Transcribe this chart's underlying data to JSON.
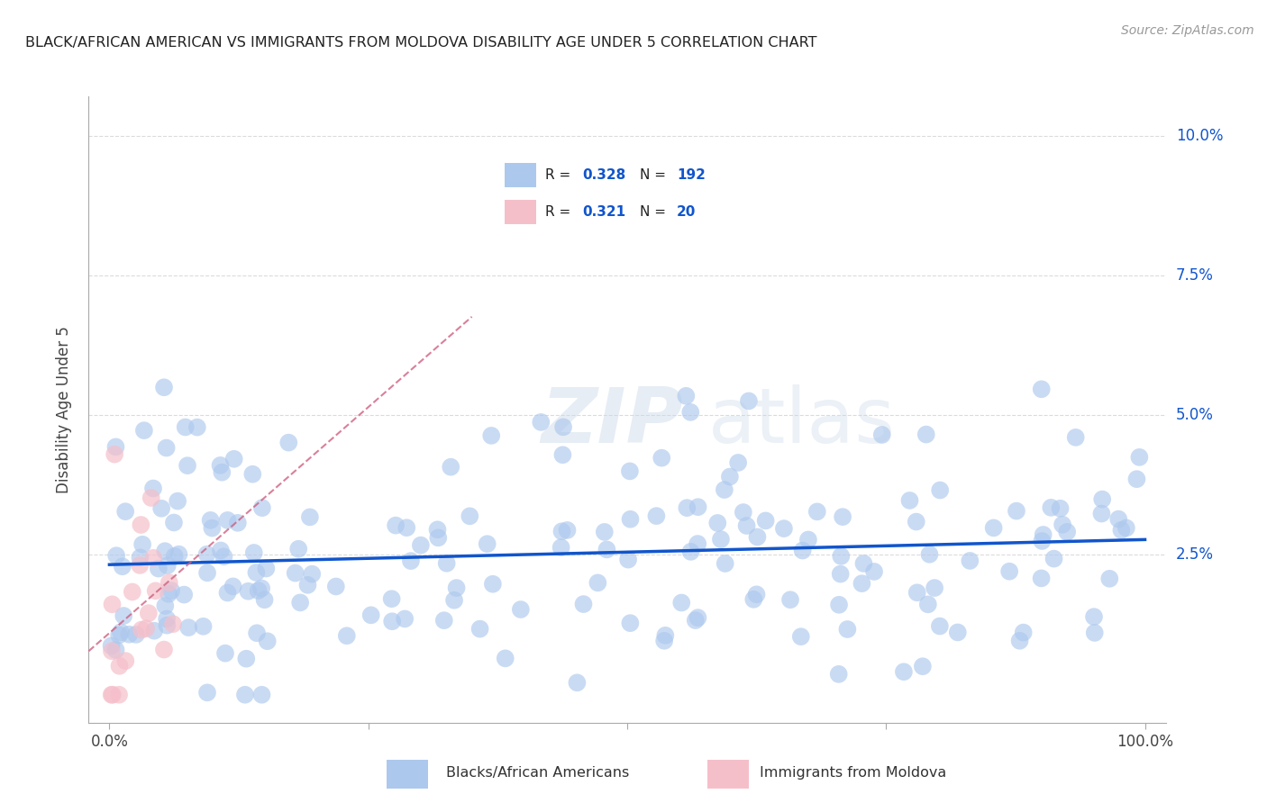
{
  "title": "BLACK/AFRICAN AMERICAN VS IMMIGRANTS FROM MOLDOVA DISABILITY AGE UNDER 5 CORRELATION CHART",
  "source": "Source: ZipAtlas.com",
  "ylabel": "Disability Age Under 5",
  "blue_R": 0.328,
  "blue_N": 192,
  "pink_R": 0.321,
  "pink_N": 20,
  "blue_color": "#adc8ed",
  "blue_line_color": "#1155cc",
  "pink_color": "#f5bfca",
  "pink_line_color": "#d06080",
  "bg_color": "#ffffff",
  "grid_color": "#cccccc",
  "title_color": "#222222",
  "source_color": "#999999",
  "legend_label_blue": "Blacks/African Americans",
  "legend_label_pink": "Immigrants from Moldova",
  "watermark_zip": "ZIP",
  "watermark_atlas": "atlas",
  "xlim": [
    -0.02,
    1.02
  ],
  "ylim": [
    -0.005,
    0.107
  ],
  "blue_scatter_color": "#adc8ed",
  "pink_scatter_color": "#f5bfca"
}
